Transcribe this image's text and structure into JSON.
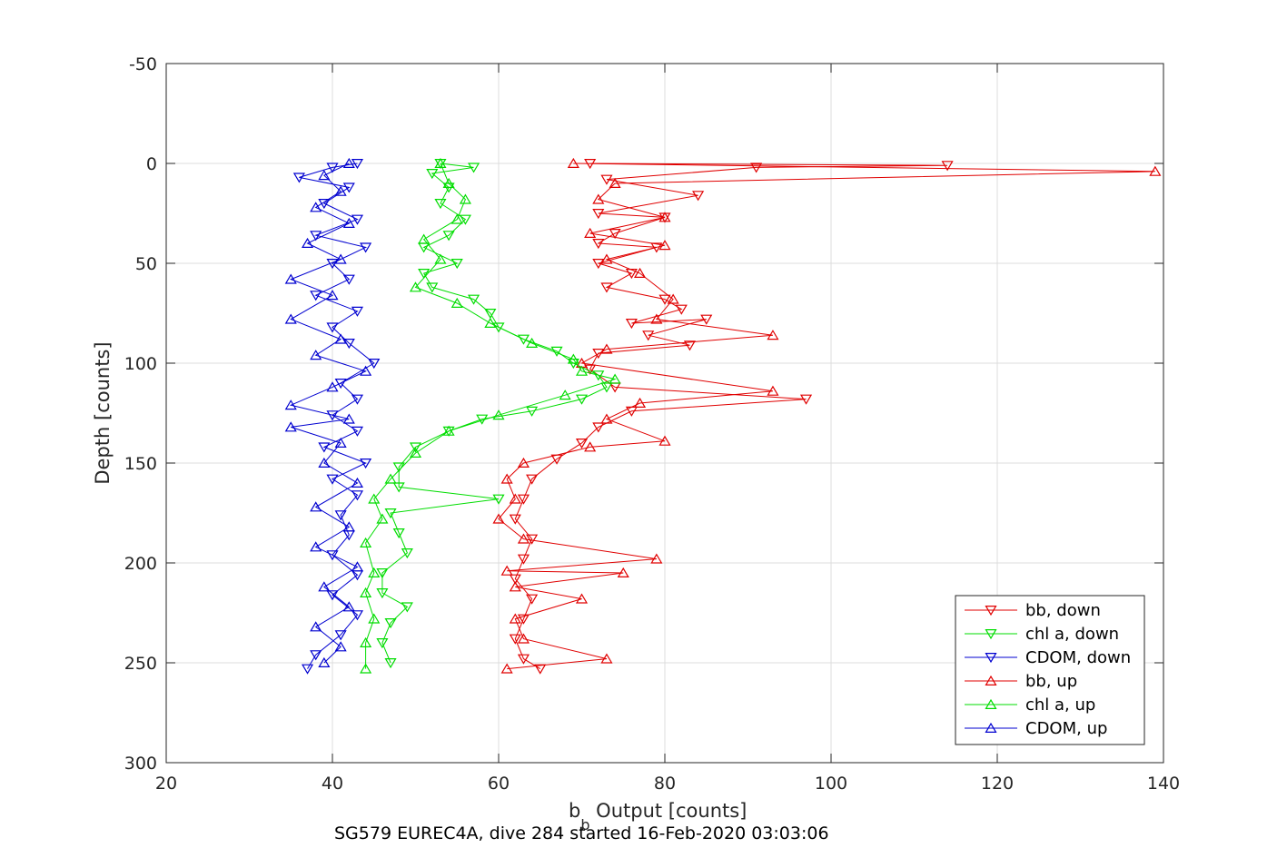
{
  "chart_data": {
    "type": "line",
    "xlabel_main": "b",
    "xlabel_sub": "b",
    "xlabel_rest": " Output [counts]",
    "ylabel": "Depth [counts]",
    "footer": "SG579 EUREC4A, dive 284 started 16-Feb-2020 03:03:06",
    "xlim": [
      20,
      140
    ],
    "ylim": [
      -50,
      300
    ],
    "y_reversed": true,
    "grid": true,
    "x_ticks": [
      "20",
      "40",
      "60",
      "80",
      "100",
      "120",
      "140"
    ],
    "y_ticks": [
      "-50",
      "0",
      "50",
      "100",
      "150",
      "200",
      "250",
      "300"
    ],
    "legend_position": "bottom-right",
    "series": [
      {
        "name": "bb, down",
        "color": "#e00000",
        "marker": "triangle-down",
        "points": [
          [
            71,
            0
          ],
          [
            114,
            1
          ],
          [
            91,
            2
          ],
          [
            73,
            8
          ],
          [
            84,
            16
          ],
          [
            72,
            25
          ],
          [
            80,
            27
          ],
          [
            74,
            35
          ],
          [
            72,
            40
          ],
          [
            79,
            42
          ],
          [
            72,
            50
          ],
          [
            76,
            55
          ],
          [
            73,
            62
          ],
          [
            80,
            68
          ],
          [
            82,
            73
          ],
          [
            76,
            80
          ],
          [
            85,
            78
          ],
          [
            78,
            86
          ],
          [
            83,
            91
          ],
          [
            72,
            95
          ],
          [
            71,
            103
          ],
          [
            74,
            112
          ],
          [
            97,
            118
          ],
          [
            76,
            124
          ],
          [
            72,
            132
          ],
          [
            70,
            140
          ],
          [
            67,
            148
          ],
          [
            64,
            158
          ],
          [
            63,
            168
          ],
          [
            62,
            178
          ],
          [
            64,
            188
          ],
          [
            63,
            198
          ],
          [
            62,
            208
          ],
          [
            64,
            218
          ],
          [
            63,
            228
          ],
          [
            62,
            238
          ],
          [
            63,
            248
          ],
          [
            65,
            253
          ]
        ]
      },
      {
        "name": "chl a, down",
        "color": "#00dd00",
        "marker": "triangle-down",
        "points": [
          [
            53,
            0
          ],
          [
            57,
            2
          ],
          [
            52,
            5
          ],
          [
            54,
            12
          ],
          [
            53,
            20
          ],
          [
            56,
            28
          ],
          [
            54,
            36
          ],
          [
            51,
            42
          ],
          [
            55,
            50
          ],
          [
            51,
            55
          ],
          [
            52,
            62
          ],
          [
            57,
            68
          ],
          [
            59,
            75
          ],
          [
            60,
            82
          ],
          [
            63,
            88
          ],
          [
            67,
            94
          ],
          [
            69,
            100
          ],
          [
            72,
            106
          ],
          [
            73,
            112
          ],
          [
            70,
            118
          ],
          [
            64,
            124
          ],
          [
            58,
            128
          ],
          [
            54,
            134
          ],
          [
            50,
            142
          ],
          [
            48,
            152
          ],
          [
            48,
            162
          ],
          [
            60,
            168
          ],
          [
            47,
            175
          ],
          [
            48,
            185
          ],
          [
            49,
            195
          ],
          [
            46,
            205
          ],
          [
            46,
            215
          ],
          [
            49,
            222
          ],
          [
            47,
            230
          ],
          [
            46,
            240
          ],
          [
            47,
            250
          ]
        ]
      },
      {
        "name": "CDOM, down",
        "color": "#0000d0",
        "marker": "triangle-down",
        "points": [
          [
            43,
            0
          ],
          [
            40,
            2
          ],
          [
            36,
            7
          ],
          [
            42,
            12
          ],
          [
            39,
            20
          ],
          [
            43,
            28
          ],
          [
            38,
            36
          ],
          [
            44,
            42
          ],
          [
            40,
            50
          ],
          [
            42,
            58
          ],
          [
            38,
            66
          ],
          [
            43,
            74
          ],
          [
            40,
            82
          ],
          [
            42,
            90
          ],
          [
            45,
            100
          ],
          [
            41,
            110
          ],
          [
            43,
            118
          ],
          [
            40,
            126
          ],
          [
            43,
            134
          ],
          [
            39,
            142
          ],
          [
            44,
            150
          ],
          [
            40,
            158
          ],
          [
            43,
            166
          ],
          [
            41,
            176
          ],
          [
            42,
            186
          ],
          [
            40,
            196
          ],
          [
            43,
            206
          ],
          [
            40,
            216
          ],
          [
            43,
            226
          ],
          [
            41,
            236
          ],
          [
            38,
            246
          ],
          [
            37,
            253
          ]
        ]
      },
      {
        "name": "bb, up",
        "color": "#e00000",
        "marker": "triangle-up",
        "points": [
          [
            69,
            0
          ],
          [
            139,
            4
          ],
          [
            74,
            10
          ],
          [
            72,
            18
          ],
          [
            80,
            27
          ],
          [
            71,
            35
          ],
          [
            80,
            41
          ],
          [
            73,
            48
          ],
          [
            77,
            55
          ],
          [
            81,
            68
          ],
          [
            79,
            78
          ],
          [
            93,
            86
          ],
          [
            73,
            93
          ],
          [
            70,
            100
          ],
          [
            93,
            114
          ],
          [
            77,
            120
          ],
          [
            73,
            128
          ],
          [
            80,
            139
          ],
          [
            71,
            142
          ],
          [
            63,
            150
          ],
          [
            61,
            158
          ],
          [
            62,
            168
          ],
          [
            60,
            178
          ],
          [
            63,
            188
          ],
          [
            79,
            198
          ],
          [
            61,
            204
          ],
          [
            75,
            205
          ],
          [
            62,
            212
          ],
          [
            70,
            218
          ],
          [
            62,
            228
          ],
          [
            63,
            238
          ],
          [
            73,
            248
          ],
          [
            61,
            253
          ]
        ]
      },
      {
        "name": "chl a, up",
        "color": "#00dd00",
        "marker": "triangle-up",
        "points": [
          [
            53,
            0
          ],
          [
            54,
            10
          ],
          [
            56,
            18
          ],
          [
            55,
            28
          ],
          [
            51,
            38
          ],
          [
            53,
            48
          ],
          [
            50,
            62
          ],
          [
            55,
            70
          ],
          [
            59,
            80
          ],
          [
            64,
            90
          ],
          [
            69,
            98
          ],
          [
            70,
            104
          ],
          [
            74,
            108
          ],
          [
            68,
            116
          ],
          [
            60,
            126
          ],
          [
            54,
            134
          ],
          [
            50,
            145
          ],
          [
            47,
            158
          ],
          [
            45,
            168
          ],
          [
            46,
            178
          ],
          [
            44,
            190
          ],
          [
            45,
            205
          ],
          [
            44,
            215
          ],
          [
            45,
            228
          ],
          [
            44,
            240
          ],
          [
            44,
            253
          ]
        ]
      },
      {
        "name": "CDOM, up",
        "color": "#0000d0",
        "marker": "triangle-up",
        "points": [
          [
            42,
            0
          ],
          [
            39,
            6
          ],
          [
            41,
            14
          ],
          [
            38,
            22
          ],
          [
            42,
            30
          ],
          [
            37,
            40
          ],
          [
            41,
            48
          ],
          [
            35,
            58
          ],
          [
            40,
            66
          ],
          [
            35,
            78
          ],
          [
            41,
            88
          ],
          [
            38,
            96
          ],
          [
            44,
            104
          ],
          [
            40,
            112
          ],
          [
            35,
            121
          ],
          [
            42,
            128
          ],
          [
            35,
            132
          ],
          [
            41,
            140
          ],
          [
            39,
            150
          ],
          [
            43,
            160
          ],
          [
            38,
            172
          ],
          [
            42,
            182
          ],
          [
            38,
            192
          ],
          [
            43,
            202
          ],
          [
            39,
            212
          ],
          [
            42,
            222
          ],
          [
            38,
            232
          ],
          [
            41,
            242
          ],
          [
            39,
            250
          ]
        ]
      }
    ]
  }
}
